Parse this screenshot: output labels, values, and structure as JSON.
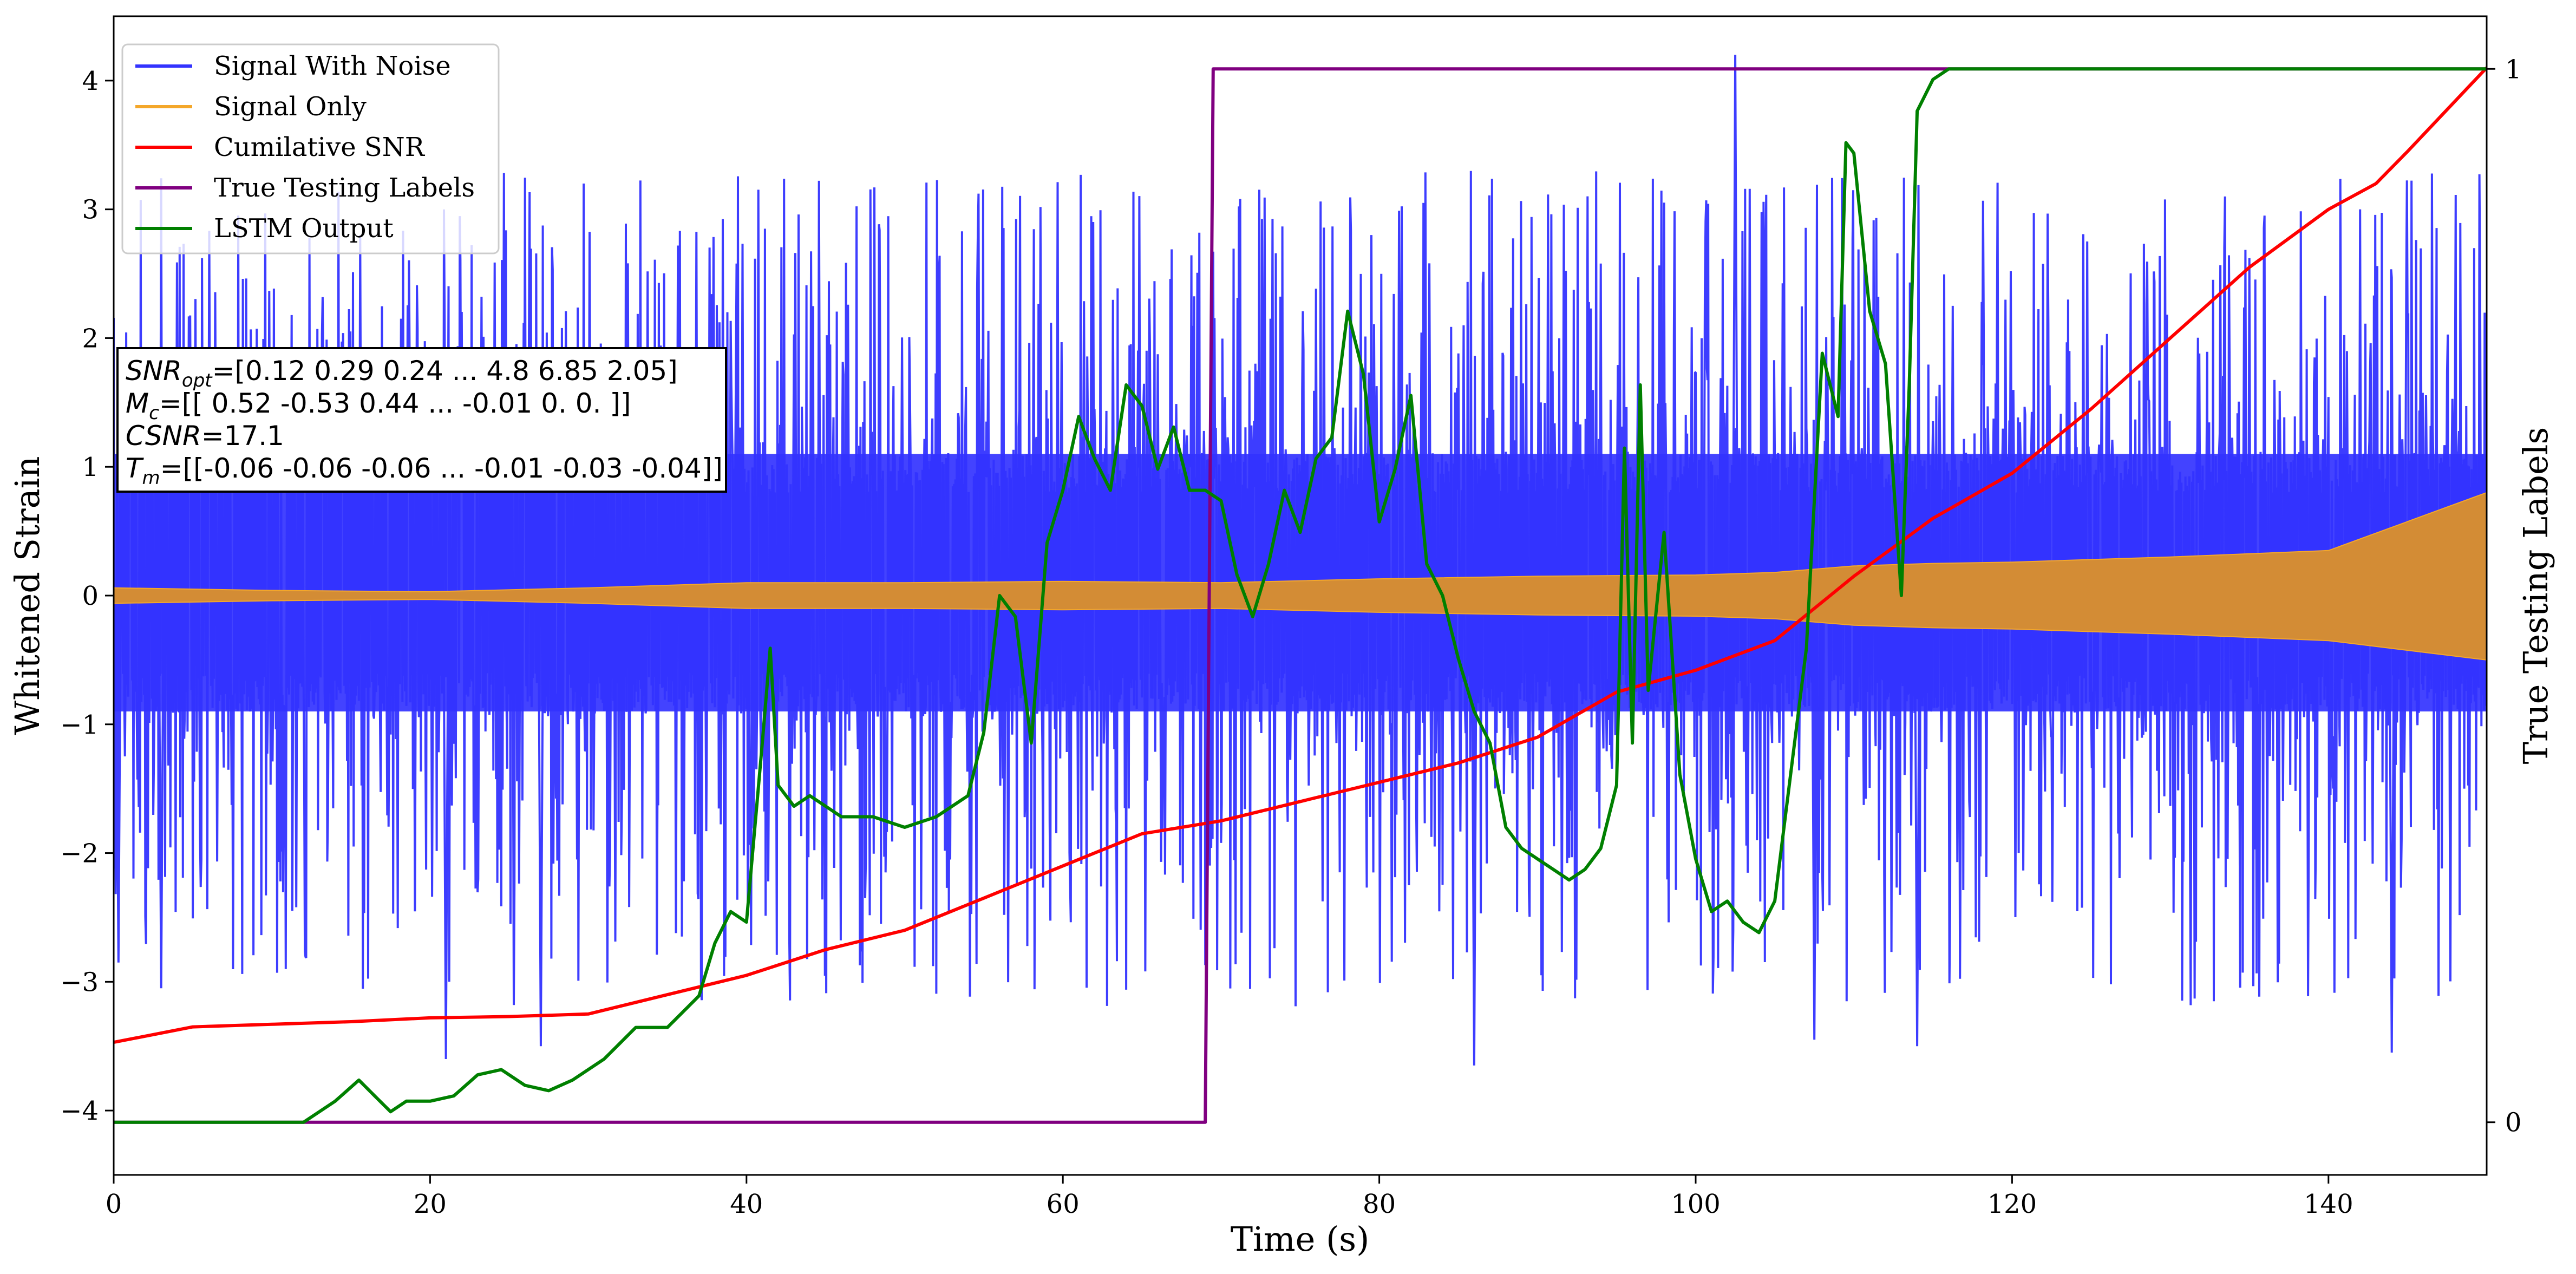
{
  "chart_data": {
    "type": "line",
    "title": "",
    "xlabel": "Time (s)",
    "ylabel": "Whitened Strain",
    "y2label": "True Testing Labels",
    "xlim": [
      0,
      150
    ],
    "ylim": [
      -4.5,
      4.5
    ],
    "y2lim": [
      -0.05,
      1.05
    ],
    "x_ticks": [
      0,
      20,
      40,
      60,
      80,
      100,
      120,
      140
    ],
    "y_ticks": [
      -4,
      -3,
      -2,
      -1,
      0,
      1,
      2,
      3,
      4
    ],
    "y2_ticks": [
      0,
      1
    ],
    "x_tick_labels": [
      "0",
      "20",
      "40",
      "60",
      "80",
      "100",
      "120",
      "140"
    ],
    "y_tick_labels": [
      "−4",
      "−3",
      "−2",
      "−1",
      "0",
      "1",
      "2",
      "3",
      "4"
    ],
    "y2_tick_labels": [
      "0",
      "1"
    ],
    "grid": false,
    "legend": {
      "position": "top-left",
      "entries": [
        "Signal With Noise",
        "Signal Only",
        "Cumilative SNR",
        "True Testing Labels",
        "LSTM Output"
      ]
    },
    "annotation": {
      "lines": [
        {
          "base": "SNR",
          "sub": "opt",
          "rest": "=[0.12 0.29 0.24 ... 4.8  6.85 2.05]"
        },
        {
          "base": "M",
          "sub": "c",
          "rest": "=[[ 0.52 -0.53  0.44 ... -0.01  0.    0.  ]]"
        },
        {
          "base": "CSNR",
          "sub": "",
          "rest": "=17.1"
        },
        {
          "base": "T",
          "sub": "m",
          "rest": "=[[-0.06 -0.06 -0.06 ... -0.01 -0.03 -0.04]]"
        }
      ]
    },
    "series": [
      {
        "name": "Signal With Noise",
        "color": "#3333ff",
        "axis": "left",
        "style": "dense-noise",
        "core_band": [
          -0.9,
          1.1
        ],
        "spike_range": [
          -3.6,
          4.2
        ],
        "peak_points": [
          [
            0.3,
            -2.85
          ],
          [
            3,
            -3.05
          ],
          [
            21,
            -3.6
          ],
          [
            27,
            -3.5
          ],
          [
            86,
            -3.65
          ],
          [
            102.5,
            4.2
          ],
          [
            107.5,
            -3.45
          ],
          [
            114,
            -3.5
          ],
          [
            144,
            -3.55
          ]
        ]
      },
      {
        "name": "Signal Only",
        "color": "#f4a72a",
        "fill_color": "#d38c35",
        "axis": "left",
        "style": "envelope",
        "x": [
          0,
          10,
          20,
          30,
          40,
          50,
          60,
          70,
          80,
          90,
          100,
          105,
          110,
          115,
          120,
          130,
          140,
          150
        ],
        "upper": [
          0.06,
          0.04,
          0.03,
          0.06,
          0.1,
          0.1,
          0.11,
          0.1,
          0.13,
          0.15,
          0.16,
          0.18,
          0.23,
          0.25,
          0.26,
          0.3,
          0.35,
          0.8
        ],
        "lower": [
          -0.06,
          -0.04,
          -0.03,
          -0.06,
          -0.1,
          -0.1,
          -0.11,
          -0.1,
          -0.13,
          -0.15,
          -0.16,
          -0.18,
          -0.23,
          -0.25,
          -0.26,
          -0.3,
          -0.35,
          -0.5
        ]
      },
      {
        "name": "Cumilative SNR",
        "color": "#ff0000",
        "axis": "left",
        "x": [
          0,
          5,
          10,
          15,
          20,
          25,
          30,
          35,
          40,
          45,
          50,
          55,
          60,
          65,
          70,
          75,
          80,
          85,
          90,
          95,
          100,
          105,
          110,
          115,
          120,
          125,
          130,
          135,
          140,
          143,
          145,
          150
        ],
        "y": [
          -3.47,
          -3.35,
          -3.33,
          -3.31,
          -3.28,
          -3.27,
          -3.25,
          -3.1,
          -2.95,
          -2.75,
          -2.6,
          -2.35,
          -2.1,
          -1.85,
          -1.75,
          -1.6,
          -1.45,
          -1.3,
          -1.1,
          -0.75,
          -0.58,
          -0.35,
          0.15,
          0.6,
          0.95,
          1.45,
          2.0,
          2.55,
          3.0,
          3.2,
          3.45,
          4.1
        ]
      },
      {
        "name": "True Testing Labels",
        "color": "#800080",
        "axis": "right",
        "x": [
          0,
          69,
          69.5,
          150
        ],
        "y": [
          0,
          0,
          1,
          1
        ]
      },
      {
        "name": "LSTM Output",
        "color": "#008000",
        "axis": "right",
        "x": [
          0,
          12,
          14,
          15.5,
          16.5,
          17.5,
          18.5,
          20,
          21.5,
          23,
          24.5,
          26,
          27.5,
          29,
          31,
          33,
          35,
          37,
          38,
          39,
          40,
          41,
          41.5,
          42,
          43,
          44,
          46,
          48,
          50,
          52,
          54,
          55,
          56,
          57,
          58,
          59,
          60,
          61,
          62,
          63,
          64,
          65,
          66,
          67,
          68,
          69,
          70,
          71,
          72,
          73,
          74,
          75,
          76,
          77,
          78,
          79,
          80,
          81,
          82,
          83,
          84,
          85,
          86,
          87,
          88,
          89,
          90,
          91,
          92,
          93,
          94,
          95,
          95.5,
          96,
          96.5,
          97,
          98,
          99,
          100,
          101,
          102,
          103,
          104,
          105,
          106,
          107,
          108,
          109,
          109.5,
          110,
          111,
          112,
          113,
          113.5,
          114,
          115,
          116,
          118,
          120,
          130,
          150
        ],
        "y": [
          0,
          0,
          0.02,
          0.04,
          0.025,
          0.01,
          0.02,
          0.02,
          0.025,
          0.045,
          0.05,
          0.035,
          0.03,
          0.04,
          0.06,
          0.09,
          0.09,
          0.12,
          0.17,
          0.2,
          0.19,
          0.36,
          0.45,
          0.32,
          0.3,
          0.31,
          0.29,
          0.29,
          0.28,
          0.29,
          0.31,
          0.37,
          0.5,
          0.48,
          0.36,
          0.55,
          0.6,
          0.67,
          0.63,
          0.6,
          0.7,
          0.68,
          0.62,
          0.66,
          0.6,
          0.6,
          0.59,
          0.52,
          0.48,
          0.53,
          0.6,
          0.56,
          0.63,
          0.65,
          0.77,
          0.71,
          0.57,
          0.62,
          0.69,
          0.53,
          0.5,
          0.44,
          0.39,
          0.36,
          0.28,
          0.26,
          0.25,
          0.24,
          0.23,
          0.24,
          0.26,
          0.32,
          0.64,
          0.36,
          0.7,
          0.41,
          0.56,
          0.33,
          0.25,
          0.2,
          0.21,
          0.19,
          0.18,
          0.21,
          0.33,
          0.45,
          0.73,
          0.67,
          0.93,
          0.92,
          0.77,
          0.72,
          0.5,
          0.7,
          0.96,
          0.99,
          1.0,
          1.0,
          1.0,
          1.0,
          1.0
        ]
      }
    ]
  }
}
